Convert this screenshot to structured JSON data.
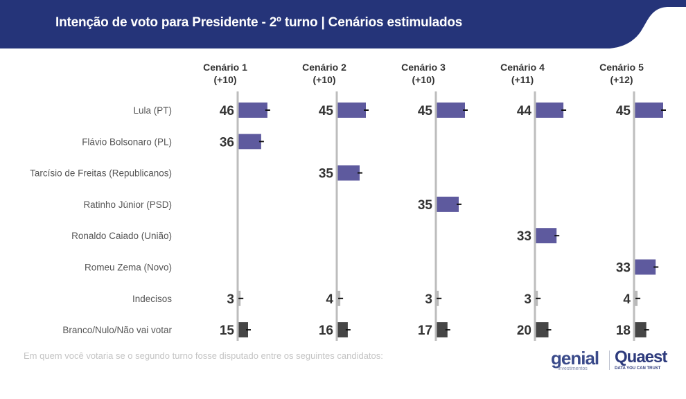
{
  "header": {
    "title": "Intenção de voto para Presidente - 2º turno | Cenários estimulados",
    "band_color": "#253479"
  },
  "footnote": "Em quem você votaria se o segundo turno fosse disputado entre os seguintes candidatos:",
  "logos": {
    "genial": "genial",
    "genial_sub": "investimentos",
    "quaest": "Quaest",
    "quaest_sub": "DATA YOU CAN TRUST"
  },
  "colors": {
    "candidate": "#5e5a9e",
    "undecided": "#b8b8b8",
    "blank": "#464646",
    "axis": "#bdbdbd",
    "label_text": "#555555",
    "value_text": "#333333"
  },
  "chart_data": {
    "type": "bar",
    "orientation": "horizontal",
    "title": "Intenção de voto para Presidente - 2º turno | Cenários estimulados",
    "categories": [
      "Lula (PT)",
      "Flávio Bolsonaro (PL)",
      "Tarcísio de Freitas (Republicanos)",
      "Ratinho Júnior (PSD)",
      "Ronaldo Caiado (União)",
      "Romeu Zema (Novo)",
      "Indecisos",
      "Branco/Nulo/Não vai votar"
    ],
    "category_kind": [
      "candidate",
      "candidate",
      "candidate",
      "candidate",
      "candidate",
      "candidate",
      "undecided",
      "blank"
    ],
    "series": [
      {
        "name": "Cenário 1",
        "margin": "(+10)",
        "values": [
          46,
          36,
          null,
          null,
          null,
          null,
          3,
          15
        ]
      },
      {
        "name": "Cenário 2",
        "margin": "(+10)",
        "values": [
          45,
          null,
          35,
          null,
          null,
          null,
          4,
          16
        ]
      },
      {
        "name": "Cenário 3",
        "margin": "(+10)",
        "values": [
          45,
          null,
          null,
          35,
          null,
          null,
          3,
          17
        ]
      },
      {
        "name": "Cenário 4",
        "margin": "(+11)",
        "values": [
          44,
          null,
          null,
          null,
          33,
          null,
          3,
          20
        ]
      },
      {
        "name": "Cenário 5",
        "margin": "(+12)",
        "values": [
          45,
          null,
          null,
          null,
          null,
          33,
          4,
          18
        ]
      }
    ],
    "xlabel": "",
    "ylabel": "",
    "unit": "%",
    "error_bars": true,
    "grid": false,
    "legend": "none"
  }
}
